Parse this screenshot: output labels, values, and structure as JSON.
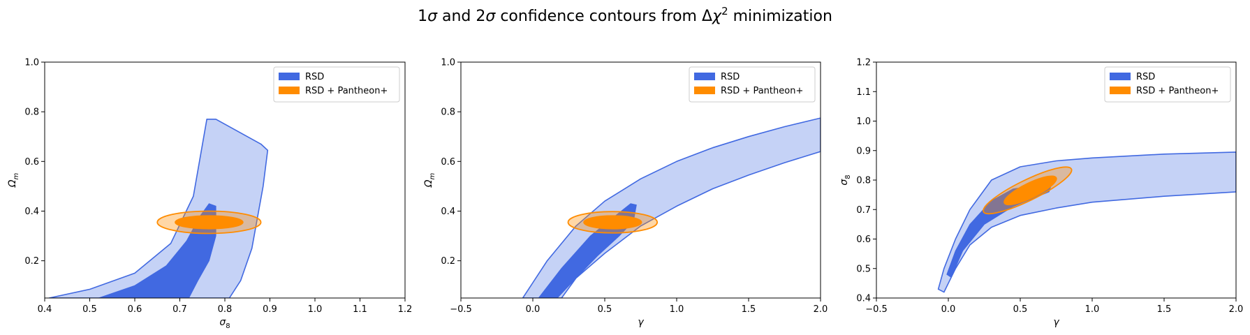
{
  "title": {
    "pre": "1",
    "sigma1": "σ",
    "mid": " and 2",
    "sigma2": "σ",
    "post1": " confidence contours from Δ",
    "chi": "χ",
    "sup": "2",
    "post2": " minimization"
  },
  "colors": {
    "rsd_fill": "#4169e1",
    "rsd_light": "#c5d2f6",
    "combo": "#ff8c00",
    "combo_light": "#d9b48c"
  },
  "chart_data": [
    {
      "type": "contour",
      "xlabel": "σ8",
      "ylabel": "Ωm",
      "xlim": [
        0.4,
        1.2
      ],
      "ylim": [
        0.05,
        1.0
      ],
      "xticks": [
        "0.4",
        "0.5",
        "0.6",
        "0.7",
        "0.8",
        "0.9",
        "1.0",
        "1.1",
        "1.2"
      ],
      "yticks": [
        "0.2",
        "0.4",
        "0.6",
        "0.8",
        "1.0"
      ],
      "legend": [
        "RSD",
        "RSD + Pantheon+"
      ],
      "legend_position": "top-right",
      "rsd_2sigma": [
        [
          0.41,
          0.05
        ],
        [
          0.5,
          0.085
        ],
        [
          0.6,
          0.15
        ],
        [
          0.68,
          0.27
        ],
        [
          0.73,
          0.46
        ],
        [
          0.76,
          0.77
        ],
        [
          0.78,
          0.77
        ],
        [
          0.88,
          0.67
        ],
        [
          0.895,
          0.645
        ],
        [
          0.885,
          0.5
        ],
        [
          0.86,
          0.25
        ],
        [
          0.835,
          0.12
        ],
        [
          0.81,
          0.05
        ]
      ],
      "rsd_1sigma": [
        [
          0.52,
          0.05
        ],
        [
          0.6,
          0.1
        ],
        [
          0.67,
          0.18
        ],
        [
          0.715,
          0.28
        ],
        [
          0.745,
          0.38
        ],
        [
          0.765,
          0.43
        ],
        [
          0.78,
          0.42
        ],
        [
          0.78,
          0.3
        ],
        [
          0.765,
          0.2
        ],
        [
          0.74,
          0.12
        ],
        [
          0.72,
          0.05
        ]
      ],
      "combo_2sigma": {
        "cx": 0.765,
        "cy": 0.355,
        "rx": 0.115,
        "ry": 0.045,
        "angle": 0
      },
      "combo_1sigma": {
        "cx": 0.765,
        "cy": 0.355,
        "rx": 0.075,
        "ry": 0.026,
        "angle": 0
      }
    },
    {
      "type": "contour",
      "xlabel": "γ",
      "ylabel": "Ωm",
      "xlim": [
        -0.5,
        2.0
      ],
      "ylim": [
        0.05,
        1.0
      ],
      "xticks": [
        "−0.5",
        "0.0",
        "0.5",
        "1.0",
        "1.5",
        "2.0"
      ],
      "yticks": [
        "0.2",
        "0.4",
        "0.6",
        "0.8",
        "1.0"
      ],
      "legend": [
        "RSD",
        "RSD + Pantheon+"
      ],
      "legend_position": "top-right",
      "rsd_2sigma": [
        [
          -0.07,
          0.05
        ],
        [
          0.1,
          0.2
        ],
        [
          0.3,
          0.34
        ],
        [
          0.5,
          0.44
        ],
        [
          0.75,
          0.53
        ],
        [
          1.0,
          0.6
        ],
        [
          1.25,
          0.655
        ],
        [
          1.5,
          0.7
        ],
        [
          1.75,
          0.74
        ],
        [
          2.0,
          0.775
        ],
        [
          2.0,
          0.64
        ],
        [
          1.75,
          0.595
        ],
        [
          1.5,
          0.545
        ],
        [
          1.25,
          0.49
        ],
        [
          1.0,
          0.42
        ],
        [
          0.75,
          0.34
        ],
        [
          0.5,
          0.23
        ],
        [
          0.3,
          0.13
        ],
        [
          0.2,
          0.05
        ]
      ],
      "rsd_1sigma": [
        [
          0.04,
          0.05
        ],
        [
          0.2,
          0.17
        ],
        [
          0.4,
          0.3
        ],
        [
          0.55,
          0.37
        ],
        [
          0.68,
          0.43
        ],
        [
          0.72,
          0.425
        ],
        [
          0.7,
          0.36
        ],
        [
          0.6,
          0.3
        ],
        [
          0.45,
          0.22
        ],
        [
          0.3,
          0.13
        ],
        [
          0.17,
          0.05
        ]
      ],
      "combo_2sigma": {
        "cx": 0.555,
        "cy": 0.355,
        "rx": 0.31,
        "ry": 0.043,
        "angle": 0
      },
      "combo_1sigma": {
        "cx": 0.555,
        "cy": 0.355,
        "rx": 0.2,
        "ry": 0.026,
        "angle": 0
      }
    },
    {
      "type": "contour",
      "xlabel": "γ",
      "ylabel": "σ8",
      "xlim": [
        -0.5,
        2.0
      ],
      "ylim": [
        0.4,
        1.2
      ],
      "xticks": [
        "−0.5",
        "0.0",
        "0.5",
        "1.0",
        "1.5",
        "2.0"
      ],
      "yticks": [
        "0.4",
        "0.5",
        "0.6",
        "0.7",
        "0.8",
        "0.9",
        "1.0",
        "1.1",
        "1.2"
      ],
      "legend": [
        "RSD",
        "RSD + Pantheon+"
      ],
      "legend_position": "top-right",
      "rsd_2sigma": [
        [
          -0.07,
          0.43
        ],
        [
          -0.03,
          0.5
        ],
        [
          0.05,
          0.6
        ],
        [
          0.15,
          0.7
        ],
        [
          0.3,
          0.8
        ],
        [
          0.5,
          0.845
        ],
        [
          0.75,
          0.865
        ],
        [
          1.0,
          0.875
        ],
        [
          1.5,
          0.888
        ],
        [
          2.0,
          0.895
        ],
        [
          2.0,
          0.76
        ],
        [
          1.5,
          0.745
        ],
        [
          1.0,
          0.725
        ],
        [
          0.75,
          0.705
        ],
        [
          0.5,
          0.68
        ],
        [
          0.3,
          0.64
        ],
        [
          0.15,
          0.58
        ],
        [
          0.05,
          0.5
        ],
        [
          -0.03,
          0.42
        ]
      ],
      "rsd_1sigma": [
        [
          -0.01,
          0.48
        ],
        [
          0.05,
          0.56
        ],
        [
          0.15,
          0.65
        ],
        [
          0.3,
          0.73
        ],
        [
          0.45,
          0.77
        ],
        [
          0.72,
          0.79
        ],
        [
          0.7,
          0.76
        ],
        [
          0.45,
          0.71
        ],
        [
          0.25,
          0.65
        ],
        [
          0.1,
          0.56
        ],
        [
          0.02,
          0.47
        ]
      ],
      "combo_2sigma": {
        "cx": 0.55,
        "cy": 0.765,
        "rx": 0.34,
        "ry": 0.035,
        "angle": 26
      },
      "combo_1sigma": {
        "cx": 0.57,
        "cy": 0.765,
        "rx": 0.2,
        "ry": 0.025,
        "angle": 26
      }
    }
  ]
}
